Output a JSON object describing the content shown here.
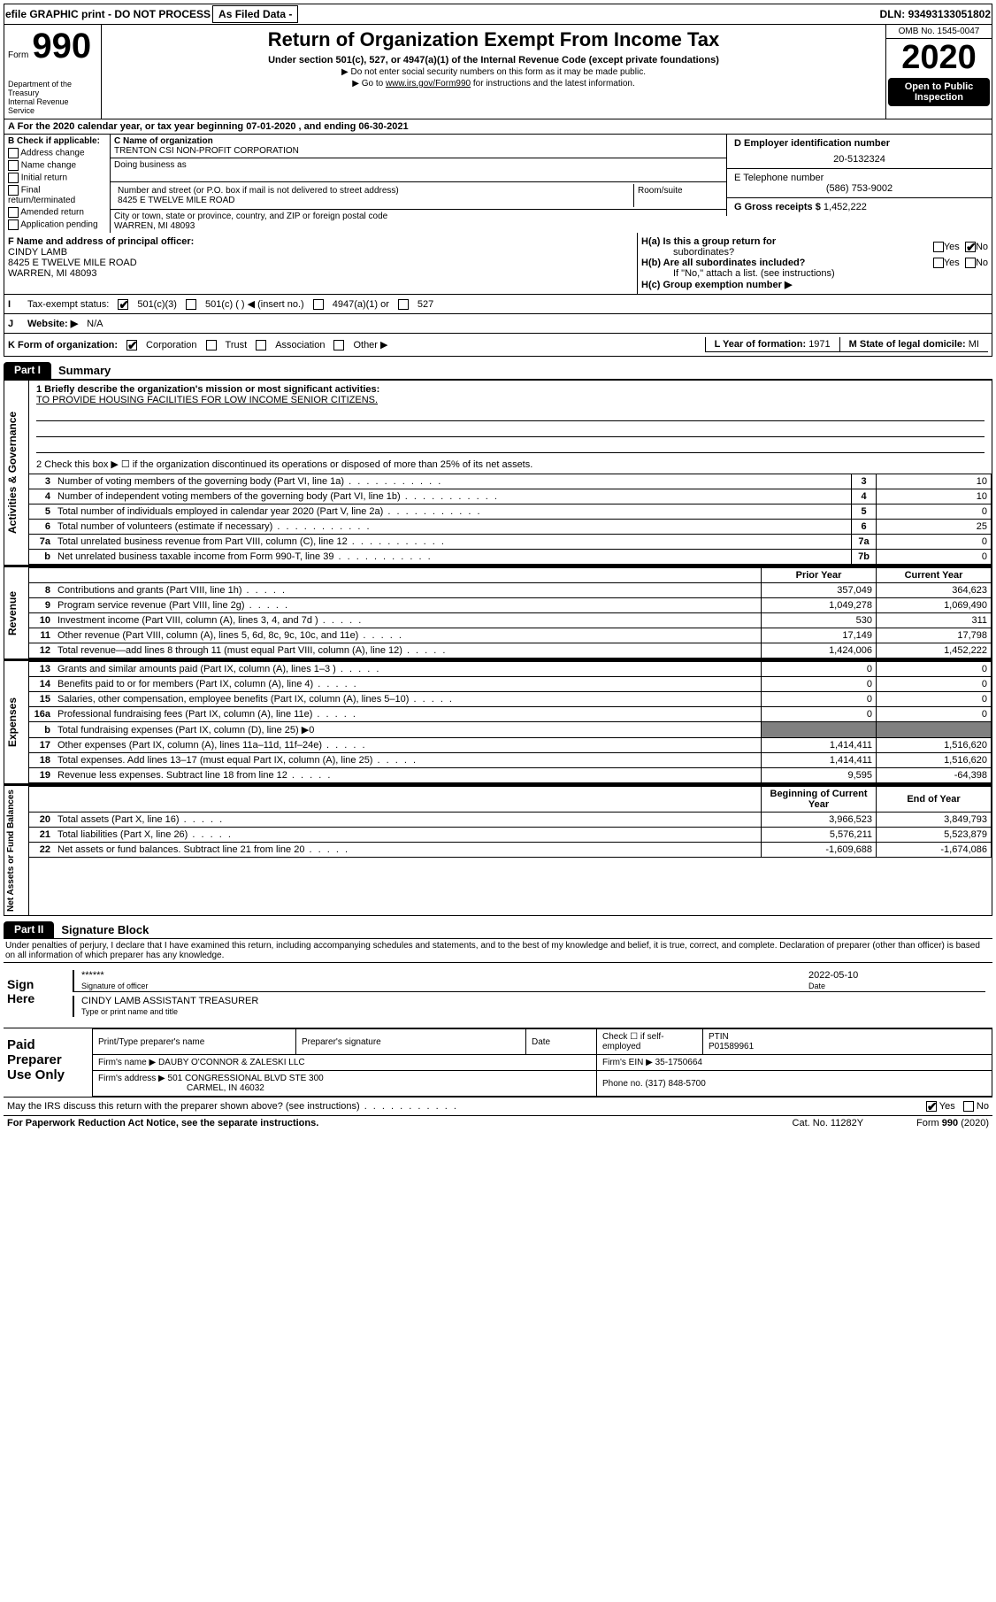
{
  "topbar": {
    "efile": "efile GRAPHIC print - DO NOT PROCESS",
    "asfiled": "As Filed Data -",
    "dln_label": "DLN:",
    "dln": "93493133051802"
  },
  "header": {
    "form_prefix": "Form",
    "form_num": "990",
    "dept": "Department of the Treasury\nInternal Revenue Service",
    "title1": "Return of Organization Exempt From Income Tax",
    "title2": "Under section 501(c), 527, or 4947(a)(1) of the Internal Revenue Code (except private foundations)",
    "title3": "▶ Do not enter social security numbers on this form as it may be made public.",
    "title4_pre": "▶ Go to",
    "title4_link": "www.irs.gov/Form990",
    "title4_post": "for instructions and the latest information.",
    "omb": "OMB No. 1545-0047",
    "year": "2020",
    "open": "Open to Public Inspection"
  },
  "rowA": "A   For the 2020 calendar year, or tax year beginning 07-01-2020   , and ending 06-30-2021",
  "sectionB": {
    "label": "B Check if applicable:",
    "opts": [
      "Address change",
      "Name change",
      "Initial return",
      "Final return/terminated",
      "Amended return",
      "Application pending"
    ]
  },
  "sectionC": {
    "label": "C Name of organization",
    "name": "TRENTON CSI NON-PROFIT CORPORATION",
    "dba_label": "Doing business as",
    "dba": "",
    "street_label": "Number and street (or P.O. box if mail is not delivered to street address)",
    "street": "8425 E TWELVE MILE ROAD",
    "room_label": "Room/suite",
    "room": "",
    "city_label": "City or town, state or province, country, and ZIP or foreign postal code",
    "city": "WARREN, MI  48093"
  },
  "sectionD": {
    "label": "D Employer identification number",
    "value": "20-5132324"
  },
  "sectionE": {
    "label": "E Telephone number",
    "value": "(586) 753-9002"
  },
  "sectionG": {
    "label": "G Gross receipts $",
    "value": "1,452,222"
  },
  "sectionF": {
    "label": "F  Name and address of principal officer:",
    "line1": "CINDY LAMB",
    "line2": "8425 E TWELVE MILE ROAD",
    "line3": "WARREN, MI  48093"
  },
  "sectionH": {
    "a_label": "H(a)  Is this a group return for",
    "a_sub": "subordinates?",
    "b_label": "H(b)  Are all subordinates included?",
    "b_note": "If \"No,\" attach a list. (see instructions)",
    "c_label": "H(c)  Group exemption number ▶",
    "yes": "Yes",
    "no": "No"
  },
  "rowI": {
    "label": "Tax-exempt status:",
    "opts": [
      "501(c)(3)",
      "501(c) (   ) ◀ (insert no.)",
      "4947(a)(1) or",
      "527"
    ]
  },
  "rowJ": {
    "label": "Website: ▶",
    "value": "N/A"
  },
  "rowK": {
    "label": "K Form of organization:",
    "opts": [
      "Corporation",
      "Trust",
      "Association",
      "Other ▶"
    ]
  },
  "rowL": {
    "label": "L Year of formation:",
    "value": "1971"
  },
  "rowM": {
    "label": "M State of legal domicile:",
    "value": "MI"
  },
  "part1": {
    "tab": "Part I",
    "title": "Summary",
    "side1": "Activities & Governance",
    "side2": "Revenue",
    "side3": "Expenses",
    "side4": "Net Assets or Fund Balances",
    "q1": "1 Briefly describe the organization's mission or most significant activities:",
    "mission": "TO PROVIDE HOUSING FACILITIES FOR LOW INCOME SENIOR CITIZENS.",
    "q2": "2  Check this box ▶ ☐ if the organization discontinued its operations or disposed of more than 25% of its net assets.",
    "lines_gov": [
      {
        "n": "3",
        "t": "Number of voting members of the governing body (Part VI, line 1a)",
        "k": "3",
        "v": "10"
      },
      {
        "n": "4",
        "t": "Number of independent voting members of the governing body (Part VI, line 1b)",
        "k": "4",
        "v": "10"
      },
      {
        "n": "5",
        "t": "Total number of individuals employed in calendar year 2020 (Part V, line 2a)",
        "k": "5",
        "v": "0"
      },
      {
        "n": "6",
        "t": "Total number of volunteers (estimate if necessary)",
        "k": "6",
        "v": "25"
      },
      {
        "n": "7a",
        "t": "Total unrelated business revenue from Part VIII, column (C), line 12",
        "k": "7a",
        "v": "0"
      },
      {
        "n": "b",
        "t": "Net unrelated business taxable income from Form 990-T, line 39",
        "k": "7b",
        "v": "0"
      }
    ],
    "col_prior": "Prior Year",
    "col_current": "Current Year",
    "col_boy": "Beginning of Current Year",
    "col_eoy": "End of Year",
    "lines_rev": [
      {
        "n": "8",
        "t": "Contributions and grants (Part VIII, line 1h)",
        "p": "357,049",
        "c": "364,623"
      },
      {
        "n": "9",
        "t": "Program service revenue (Part VIII, line 2g)",
        "p": "1,049,278",
        "c": "1,069,490"
      },
      {
        "n": "10",
        "t": "Investment income (Part VIII, column (A), lines 3, 4, and 7d )",
        "p": "530",
        "c": "311"
      },
      {
        "n": "11",
        "t": "Other revenue (Part VIII, column (A), lines 5, 6d, 8c, 9c, 10c, and 11e)",
        "p": "17,149",
        "c": "17,798"
      },
      {
        "n": "12",
        "t": "Total revenue—add lines 8 through 11 (must equal Part VIII, column (A), line 12)",
        "p": "1,424,006",
        "c": "1,452,222"
      }
    ],
    "lines_exp": [
      {
        "n": "13",
        "t": "Grants and similar amounts paid (Part IX, column (A), lines 1–3 )",
        "p": "0",
        "c": "0"
      },
      {
        "n": "14",
        "t": "Benefits paid to or for members (Part IX, column (A), line 4)",
        "p": "0",
        "c": "0"
      },
      {
        "n": "15",
        "t": "Salaries, other compensation, employee benefits (Part IX, column (A), lines 5–10)",
        "p": "0",
        "c": "0"
      },
      {
        "n": "16a",
        "t": "Professional fundraising fees (Part IX, column (A), line 11e)",
        "p": "0",
        "c": "0"
      },
      {
        "n": "b",
        "t": "Total fundraising expenses (Part IX, column (D), line 25) ▶0",
        "p": "",
        "c": ""
      },
      {
        "n": "17",
        "t": "Other expenses (Part IX, column (A), lines 11a–11d, 11f–24e)",
        "p": "1,414,411",
        "c": "1,516,620"
      },
      {
        "n": "18",
        "t": "Total expenses. Add lines 13–17 (must equal Part IX, column (A), line 25)",
        "p": "1,414,411",
        "c": "1,516,620"
      },
      {
        "n": "19",
        "t": "Revenue less expenses. Subtract line 18 from line 12",
        "p": "9,595",
        "c": "-64,398"
      }
    ],
    "lines_net": [
      {
        "n": "20",
        "t": "Total assets (Part X, line 16)",
        "p": "3,966,523",
        "c": "3,849,793"
      },
      {
        "n": "21",
        "t": "Total liabilities (Part X, line 26)",
        "p": "5,576,211",
        "c": "5,523,879"
      },
      {
        "n": "22",
        "t": "Net assets or fund balances. Subtract line 21 from line 20",
        "p": "-1,609,688",
        "c": "-1,674,086"
      }
    ]
  },
  "part2": {
    "tab": "Part II",
    "title": "Signature Block",
    "para": "Under penalties of perjury, I declare that I have examined this return, including accompanying schedules and statements, and to the best of my knowledge and belief, it is true, correct, and complete. Declaration of preparer (other than officer) is based on all information of which preparer has any knowledge.",
    "sign_label": "Sign Here",
    "stars": "******",
    "sig_officer": "Signature of officer",
    "date_label": "Date",
    "date": "2022-05-10",
    "officer": "CINDY LAMB ASSISTANT TREASURER",
    "type_name": "Type or print name and title",
    "paid_label": "Paid Preparer Use Only",
    "prep_name_label": "Print/Type preparer's name",
    "prep_name": "",
    "prep_sig_label": "Preparer's signature",
    "prep_date_label": "Date",
    "self_emp": "Check ☐ if self-employed",
    "ptin_label": "PTIN",
    "ptin": "P01589961",
    "firm_name_label": "Firm's name    ▶",
    "firm_name": "DAUBY O'CONNOR & ZALESKI LLC",
    "firm_ein_label": "Firm's EIN ▶",
    "firm_ein": "35-1750664",
    "firm_addr_label": "Firm's address ▶",
    "firm_addr1": "501 CONGRESSIONAL BLVD STE 300",
    "firm_addr2": "CARMEL, IN  46032",
    "phone_label": "Phone no.",
    "phone": "(317) 848-5700",
    "discuss": "May the IRS discuss this return with the preparer shown above? (see instructions)"
  },
  "footer": {
    "left": "For Paperwork Reduction Act Notice, see the separate instructions.",
    "mid": "Cat. No. 11282Y",
    "right": "Form 990 (2020)"
  }
}
